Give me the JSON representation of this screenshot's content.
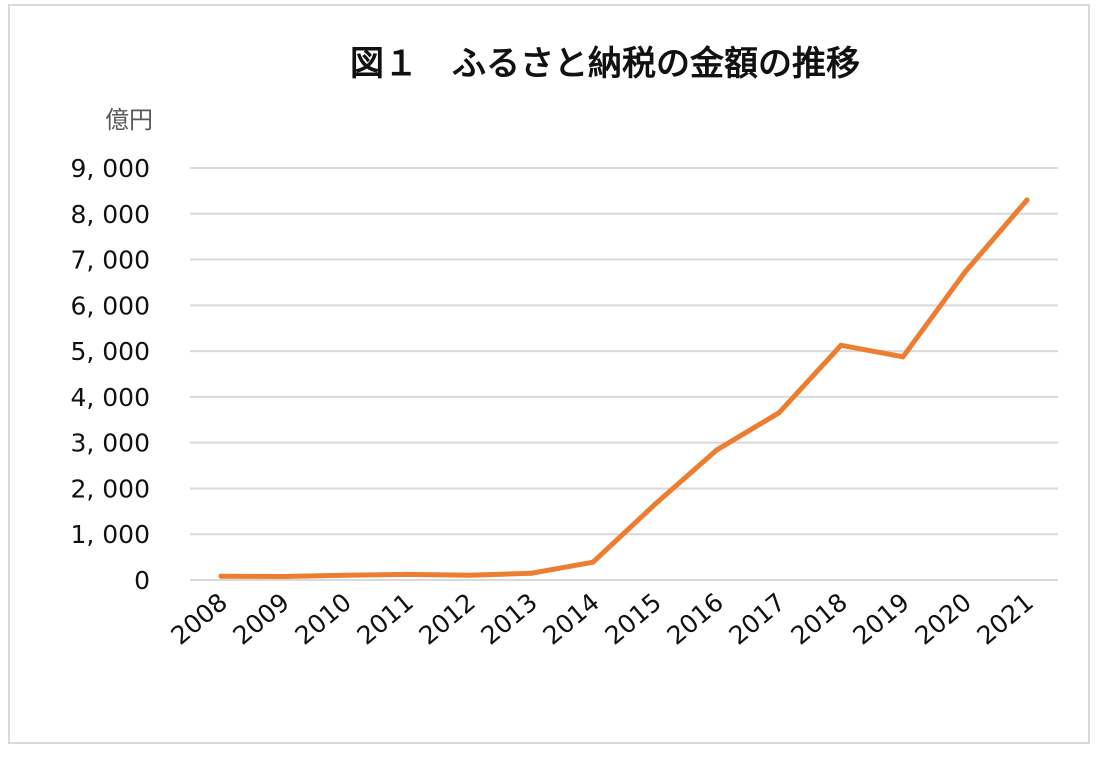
{
  "chart_data": {
    "type": "line",
    "title": "図１　ふるさと納税の金額の推移",
    "ylabel": "億円",
    "xlabel": "",
    "categories": [
      "2008",
      "2009",
      "2010",
      "2011",
      "2012",
      "2013",
      "2014",
      "2015",
      "2016",
      "2017",
      "2018",
      "2019",
      "2020",
      "2021"
    ],
    "y_tick_labels": [
      "0",
      "1, 000",
      "2, 000",
      "3, 000",
      "4, 000",
      "5, 000",
      "6, 000",
      "7, 000",
      "8, 000",
      "9, 000"
    ],
    "ylim": [
      0,
      9000
    ],
    "grid": true,
    "legend": "none",
    "series": [
      {
        "color": "#ED7D31",
        "values": [
          81,
          77,
          102,
          122,
          104,
          146,
          389,
          1653,
          2844,
          3653,
          5127,
          4875,
          6725,
          8302
        ]
      }
    ]
  }
}
